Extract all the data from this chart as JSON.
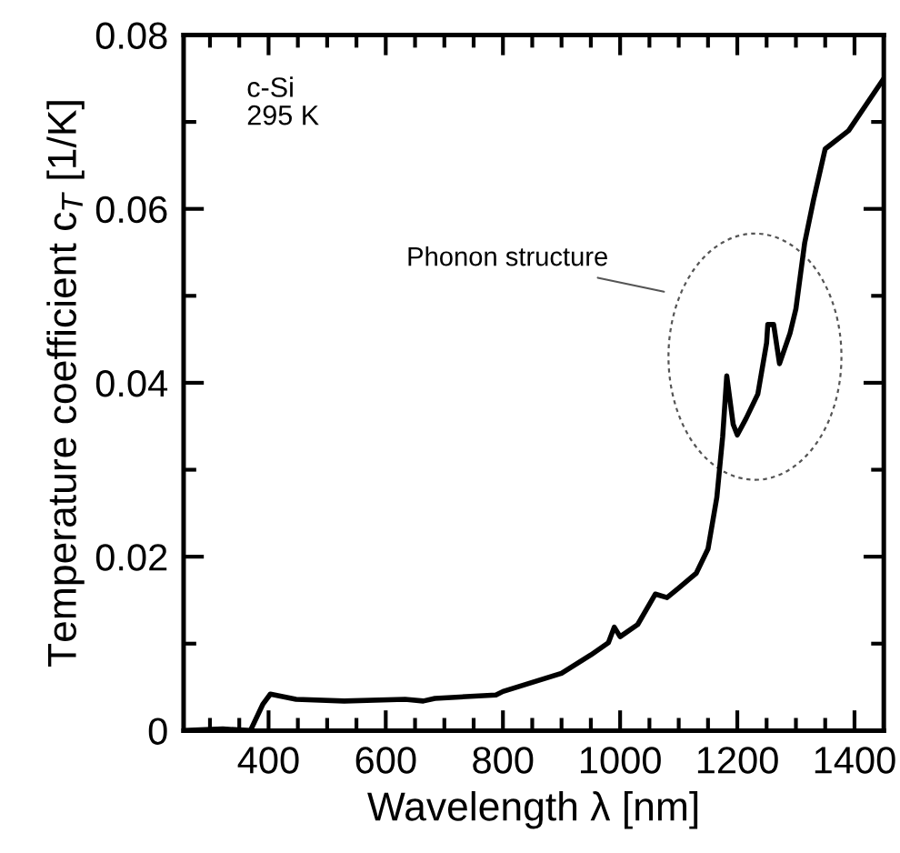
{
  "chart_data": {
    "type": "line",
    "xlabel": "Wavelength λ [nm]",
    "ylabel": "Temperature coefficient c$_{T}$ [1/K]",
    "xlim": [
      255,
      1450
    ],
    "ylim": [
      0,
      0.08
    ],
    "xticks": [
      {
        "value": 300,
        "label": null
      },
      {
        "value": 350,
        "label": null
      },
      400,
      {
        "value": 450,
        "label": null
      },
      {
        "value": 500,
        "label": null
      },
      {
        "value": 550,
        "label": null
      },
      600,
      {
        "value": 650,
        "label": null
      },
      {
        "value": 700,
        "label": null
      },
      {
        "value": 750,
        "label": null
      },
      800,
      {
        "value": 850,
        "label": null
      },
      {
        "value": 900,
        "label": null
      },
      {
        "value": 950,
        "label": null
      },
      1000,
      {
        "value": 1050,
        "label": null
      },
      {
        "value": 1100,
        "label": null
      },
      {
        "value": 1150,
        "label": null
      },
      1200,
      {
        "value": 1250,
        "label": null
      },
      {
        "value": 1300,
        "label": null
      },
      {
        "value": 1350,
        "label": null
      },
      1400
    ],
    "yticks": [
      0,
      {
        "value": 0.01,
        "label": null
      },
      0.02,
      {
        "value": 0.03,
        "label": null
      },
      0.04,
      {
        "value": 0.05,
        "label": null
      },
      0.06,
      {
        "value": 0.07,
        "label": null
      },
      0.08
    ],
    "grid": false,
    "legend": false,
    "marker": "none",
    "line_style": "solid",
    "series": [
      {
        "color": "#000000",
        "x": [
          255,
          322,
          369,
          390,
          403,
          447,
          529,
          633,
          664,
          684,
          788,
          800,
          900,
          950,
          980,
          990,
          1000,
          1030,
          1060,
          1080,
          1100,
          1130,
          1150,
          1165,
          1175,
          1182,
          1193,
          1200,
          1215,
          1235,
          1250,
          1252,
          1262,
          1272,
          1290,
          1300,
          1315,
          1330,
          1350,
          1390,
          1450
        ],
        "values": [
          0.0,
          0.0002,
          0.0,
          0.003,
          0.0042,
          0.0036,
          0.0034,
          0.0036,
          0.0034,
          0.0037,
          0.0041,
          0.0045,
          0.0066,
          0.0087,
          0.0101,
          0.0119,
          0.0108,
          0.0122,
          0.0157,
          0.0153,
          0.0164,
          0.0181,
          0.0209,
          0.0268,
          0.0338,
          0.0408,
          0.0352,
          0.034,
          0.0359,
          0.0387,
          0.0446,
          0.0467,
          0.0467,
          0.0422,
          0.0457,
          0.0485,
          0.0561,
          0.061,
          0.0669,
          0.069,
          0.075
        ]
      }
    ],
    "annotations": [
      "c-Si\n295 K",
      "Phonon structure"
    ]
  }
}
